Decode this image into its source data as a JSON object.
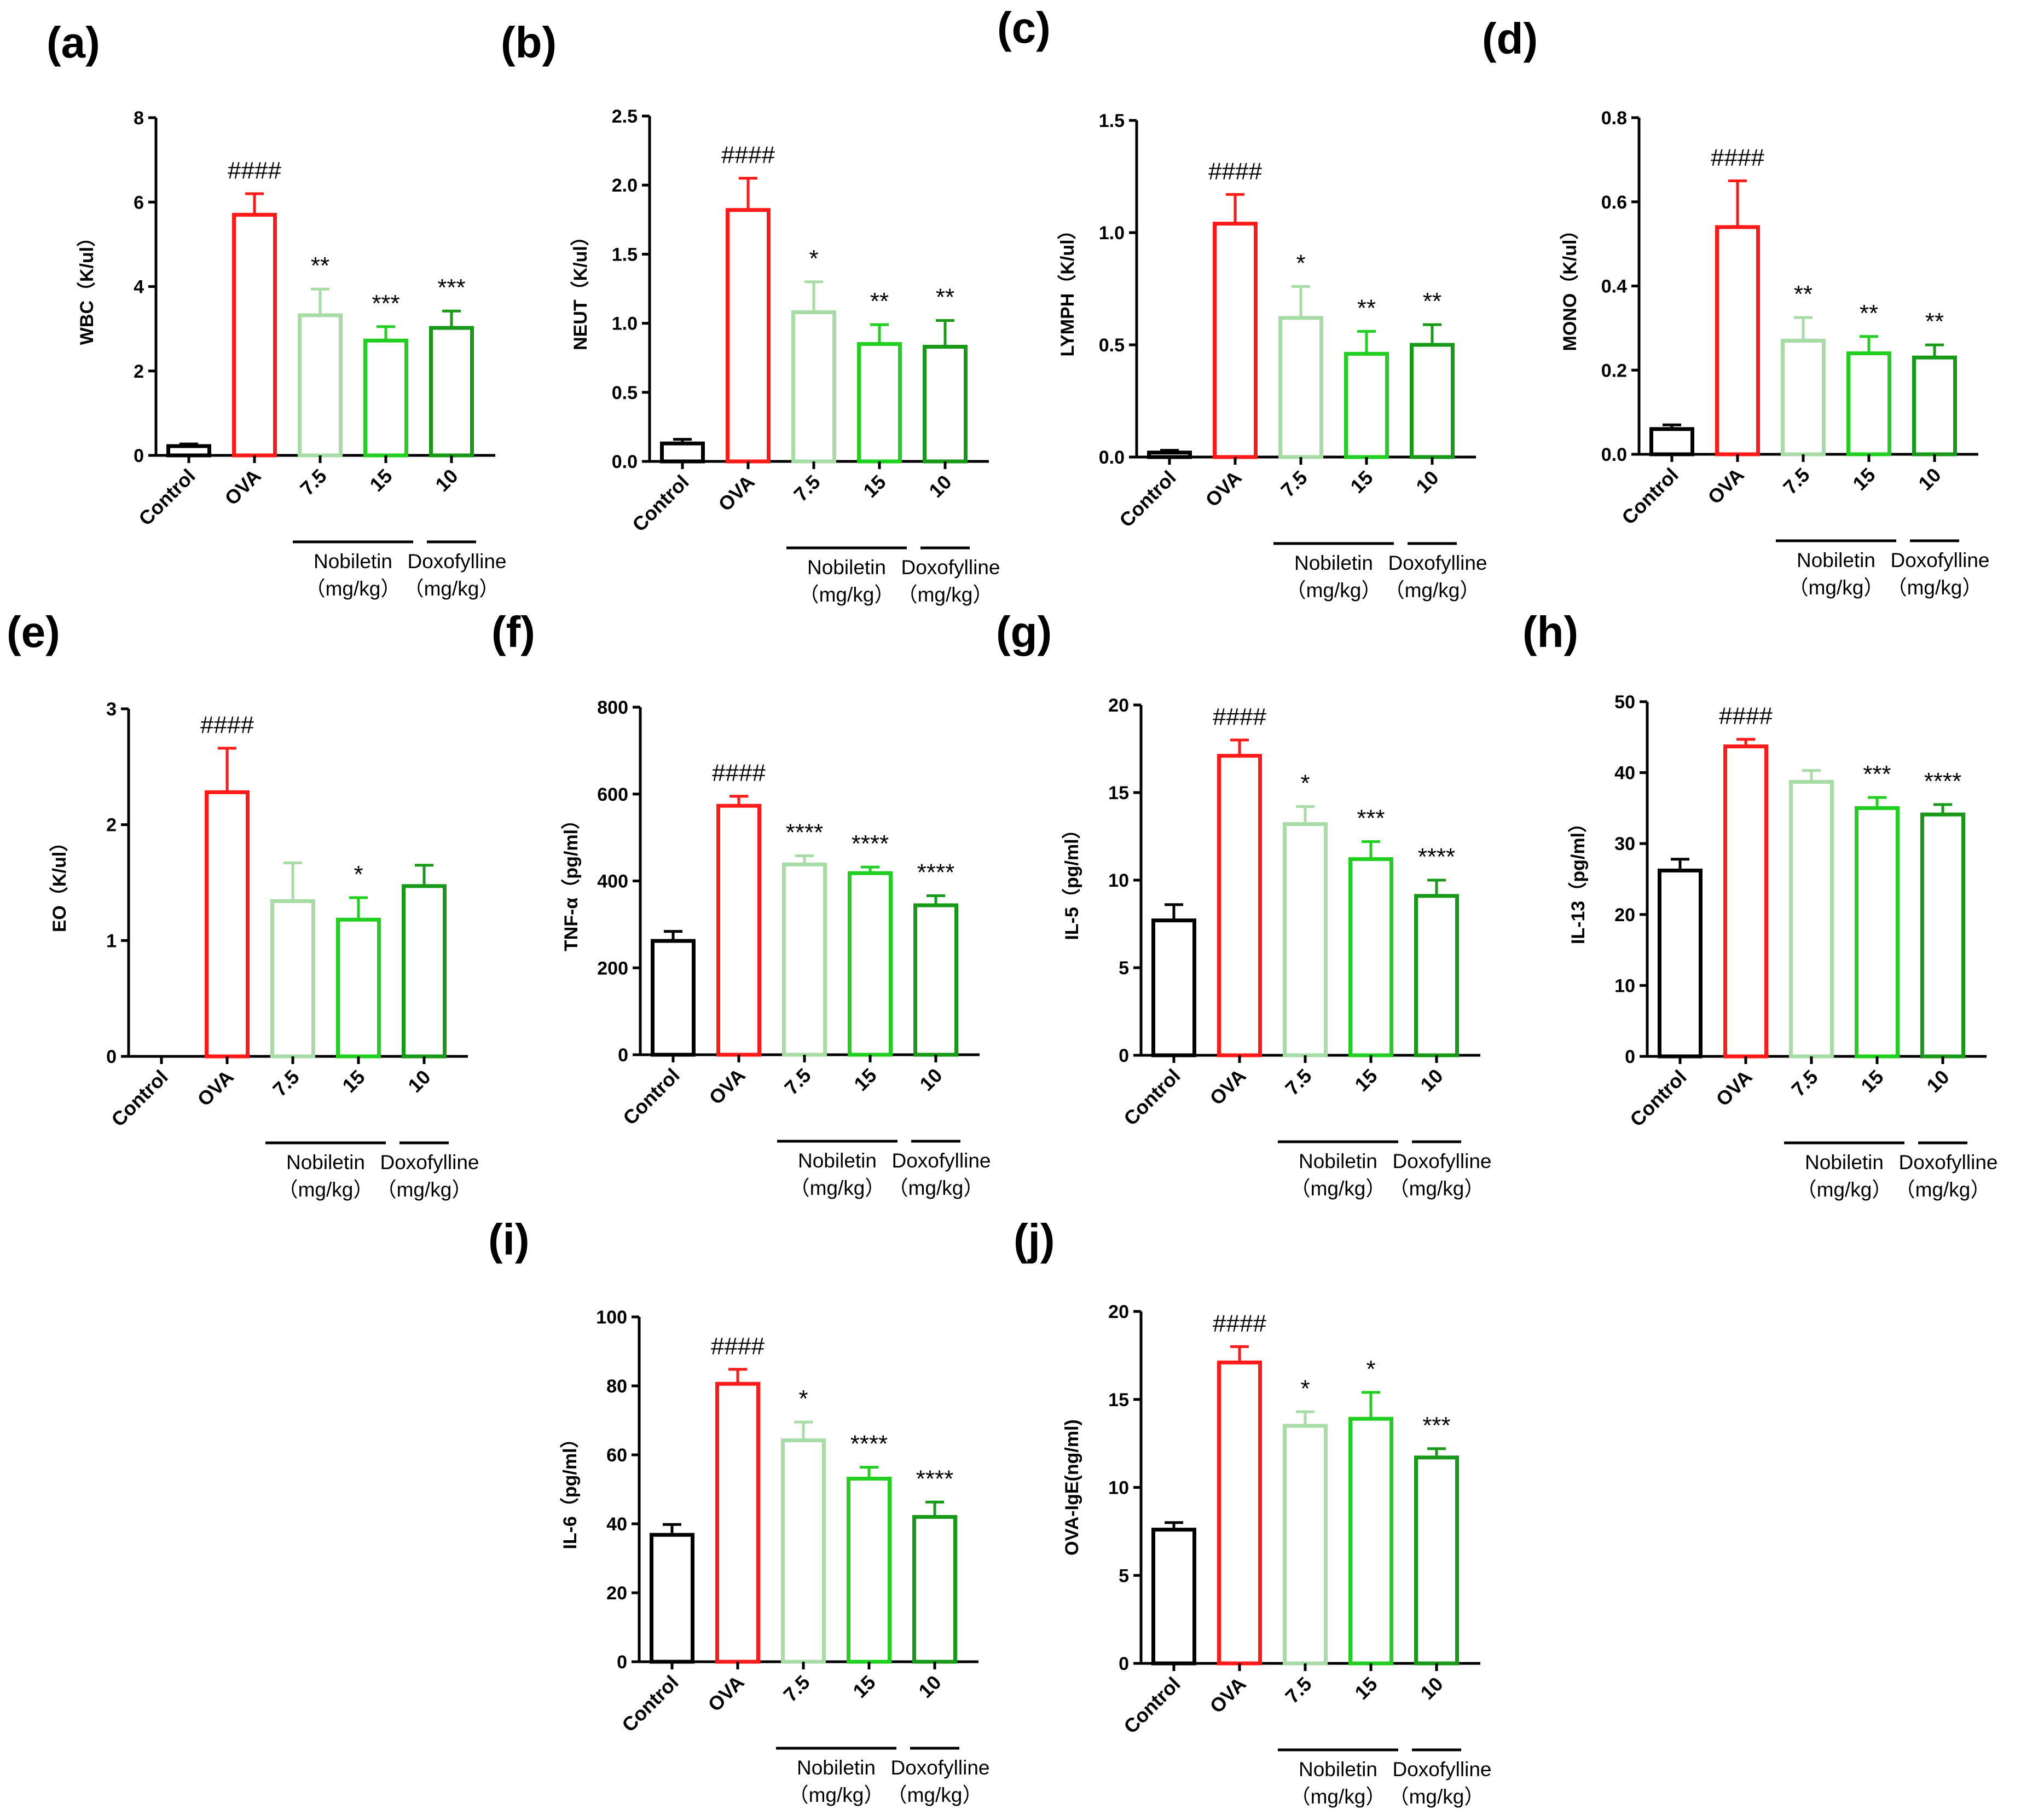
{
  "figure": {
    "categories": [
      "Control",
      "OVA",
      "7.5",
      "15",
      "10"
    ],
    "colors": [
      "#000000",
      "#ff1a1a",
      "#a8dca6",
      "#21cf21",
      "#189a18"
    ],
    "groups": [
      {
        "name": "Nobiletin",
        "unit": "（mg/kg）"
      },
      {
        "name": "Doxofylline",
        "unit": "（mg/kg）"
      }
    ]
  },
  "chart_data": [
    {
      "letter": "(a)",
      "type": "bar",
      "ylabel": "WBC（K/ul）",
      "ylim": [
        0,
        8
      ],
      "ticks": [
        "0",
        "2",
        "4",
        "6",
        "8"
      ],
      "categories": [
        "Control",
        "OVA",
        "7.5",
        "15",
        "10"
      ],
      "values": [
        0.22,
        5.7,
        3.32,
        2.72,
        3.02
      ],
      "errors": [
        0.05,
        0.5,
        0.62,
        0.33,
        0.4
      ],
      "annotations": [
        "",
        "####",
        "**",
        "***",
        "***"
      ]
    },
    {
      "letter": "(b)",
      "type": "bar",
      "ylabel": "NEUT（K/ul）",
      "ylim": [
        0,
        2.5
      ],
      "ticks": [
        "0.0",
        "0.5",
        "1.0",
        "1.5",
        "2.0",
        "2.5"
      ],
      "categories": [
        "Control",
        "OVA",
        "7.5",
        "15",
        "10"
      ],
      "values": [
        0.13,
        1.82,
        1.08,
        0.85,
        0.83
      ],
      "errors": [
        0.03,
        0.23,
        0.22,
        0.14,
        0.19
      ],
      "annotations": [
        "",
        "####",
        "*",
        "**",
        "**"
      ]
    },
    {
      "letter": "(c)",
      "type": "bar",
      "ylabel": "LYMPH（K/ul）",
      "ylim": [
        0,
        1.5
      ],
      "ticks": [
        "0.0",
        "0.5",
        "1.0",
        "1.5"
      ],
      "categories": [
        "Control",
        "OVA",
        "7.5",
        "15",
        "10"
      ],
      "values": [
        0.02,
        1.04,
        0.62,
        0.46,
        0.5
      ],
      "errors": [
        0.01,
        0.13,
        0.14,
        0.1,
        0.09
      ],
      "annotations": [
        "",
        "####",
        "*",
        "**",
        "**"
      ]
    },
    {
      "letter": "(d)",
      "type": "bar",
      "ylabel": "MONO（K/ul）",
      "ylim": [
        0,
        0.8
      ],
      "ticks": [
        "0.0",
        "0.2",
        "0.4",
        "0.6",
        "0.8"
      ],
      "categories": [
        "Control",
        "OVA",
        "7.5",
        "15",
        "10"
      ],
      "values": [
        0.06,
        0.54,
        0.27,
        0.24,
        0.23
      ],
      "errors": [
        0.01,
        0.11,
        0.055,
        0.04,
        0.03
      ],
      "annotations": [
        "",
        "####",
        "**",
        "**",
        "**"
      ]
    },
    {
      "letter": "(e)",
      "type": "bar",
      "ylabel": "EO（K/ul）",
      "ylim": [
        0,
        3
      ],
      "ticks": [
        "0",
        "1",
        "2",
        "3"
      ],
      "categories": [
        "Control",
        "OVA",
        "7.5",
        "15",
        "10"
      ],
      "values": [
        0,
        2.28,
        1.34,
        1.18,
        1.47
      ],
      "errors": [
        0,
        0.38,
        0.33,
        0.19,
        0.18
      ],
      "annotations": [
        "",
        "####",
        "",
        "*",
        ""
      ]
    },
    {
      "letter": "(f)",
      "type": "bar",
      "ylabel": "TNF-α（pg/ml）",
      "ylim": [
        0,
        800
      ],
      "ticks": [
        "0",
        "200",
        "400",
        "600",
        "800"
      ],
      "categories": [
        "Control",
        "OVA",
        "7.5",
        "15",
        "10"
      ],
      "values": [
        262,
        573,
        438,
        418,
        344
      ],
      "errors": [
        22,
        22,
        20,
        14,
        22
      ],
      "annotations": [
        "",
        "####",
        "****",
        "****",
        "****"
      ]
    },
    {
      "letter": "(g)",
      "type": "bar",
      "ylabel": "IL-5（pg/ml）",
      "ylim": [
        0,
        20
      ],
      "ticks": [
        "0",
        "5",
        "10",
        "15",
        "20"
      ],
      "categories": [
        "Control",
        "OVA",
        "7.5",
        "15",
        "10"
      ],
      "values": [
        7.7,
        17.1,
        13.2,
        11.2,
        9.1
      ],
      "errors": [
        0.9,
        0.9,
        1.0,
        1.0,
        0.9
      ],
      "annotations": [
        "",
        "####",
        "*",
        "***",
        "****"
      ]
    },
    {
      "letter": "(h)",
      "type": "bar",
      "ylabel": "IL-13（pg/ml）",
      "ylim": [
        0,
        50
      ],
      "ticks": [
        "0",
        "10",
        "20",
        "30",
        "40",
        "50"
      ],
      "categories": [
        "Control",
        "OVA",
        "7.5",
        "15",
        "10"
      ],
      "values": [
        26.2,
        43.7,
        38.7,
        35.0,
        34.1
      ],
      "errors": [
        1.6,
        1.0,
        1.6,
        1.5,
        1.4
      ],
      "annotations": [
        "",
        "####",
        "",
        "***",
        "****"
      ]
    },
    {
      "letter": "(i)",
      "type": "bar",
      "ylabel": "IL-6（pg/ml）",
      "ylim": [
        0,
        100
      ],
      "ticks": [
        "0",
        "20",
        "40",
        "60",
        "80",
        "100"
      ],
      "categories": [
        "Control",
        "OVA",
        "7.5",
        "15",
        "10"
      ],
      "values": [
        36.8,
        80.6,
        64.2,
        53.1,
        42.0
      ],
      "errors": [
        3.0,
        4.2,
        5.3,
        3.3,
        4.3
      ],
      "annotations": [
        "",
        "####",
        "*",
        "****",
        "****"
      ]
    },
    {
      "letter": "(j)",
      "type": "bar",
      "ylabel": "OVA-IgE(ng/ml)",
      "ylim": [
        0,
        20
      ],
      "ticks": [
        "0",
        "5",
        "10",
        "15",
        "20"
      ],
      "categories": [
        "Control",
        "OVA",
        "7.5",
        "15",
        "10"
      ],
      "values": [
        7.6,
        17.1,
        13.5,
        13.9,
        11.7
      ],
      "errors": [
        0.4,
        0.9,
        0.8,
        1.5,
        0.5
      ],
      "annotations": [
        "",
        "####",
        "*",
        "*",
        "***"
      ]
    }
  ]
}
